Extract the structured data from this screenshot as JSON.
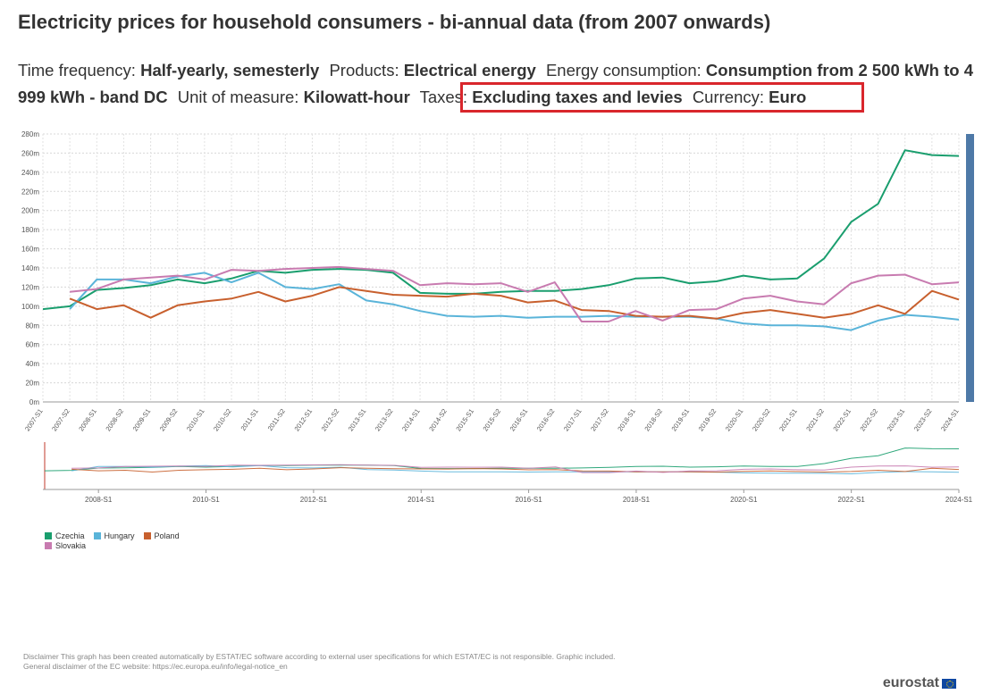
{
  "header": {
    "title": "Electricity prices for household consumers - bi-annual data (from 2007 onwards)",
    "filters": [
      {
        "label": "Time frequency:",
        "value": "Half-yearly, semesterly"
      },
      {
        "label": "Products:",
        "value": "Electrical energy"
      },
      {
        "label": "Energy consumption:",
        "value": "Consumption from 2 500 kWh to 4 999 kWh - band DC"
      },
      {
        "label": "Unit of measure:",
        "value": "Kilowatt-hour"
      },
      {
        "label": "Taxes:",
        "value": "Excluding taxes and levies"
      },
      {
        "label": "Currency:",
        "value": "Euro"
      }
    ],
    "highlight_color": "#d9262c"
  },
  "chart_data": {
    "type": "line",
    "title": "Electricity prices for household consumers - bi-annual data (from 2007 onwards)",
    "xlabel": "",
    "ylabel": "",
    "ylim": [
      0,
      280
    ],
    "y_ticks": [
      "0m",
      "20m",
      "40m",
      "60m",
      "80m",
      "100m",
      "120m",
      "140m",
      "160m",
      "180m",
      "200m",
      "220m",
      "240m",
      "260m",
      "280m"
    ],
    "y_tick_values": [
      0,
      20,
      40,
      60,
      80,
      100,
      120,
      140,
      160,
      180,
      200,
      220,
      240,
      260,
      280
    ],
    "categories": [
      "2007-S1",
      "2007-S2",
      "2008-S1",
      "2008-S2",
      "2009-S1",
      "2009-S2",
      "2010-S1",
      "2010-S2",
      "2011-S1",
      "2011-S2",
      "2012-S1",
      "2012-S2",
      "2013-S1",
      "2013-S2",
      "2014-S1",
      "2014-S2",
      "2015-S1",
      "2015-S2",
      "2016-S1",
      "2016-S2",
      "2017-S1",
      "2017-S2",
      "2018-S1",
      "2018-S2",
      "2019-S1",
      "2019-S2",
      "2020-S1",
      "2020-S2",
      "2021-S1",
      "2021-S2",
      "2022-S1",
      "2022-S2",
      "2023-S1",
      "2023-S2",
      "2024-S1"
    ],
    "grid": true,
    "legend_position": "bottom-left",
    "series": [
      {
        "name": "Czechia",
        "color": "#1a9e6e",
        "values": [
          97,
          100,
          117,
          119,
          122,
          128,
          124,
          129,
          137,
          135,
          138,
          139,
          138,
          135,
          114,
          113,
          113,
          115,
          116,
          116,
          118,
          122,
          129,
          130,
          124,
          126,
          132,
          128,
          129,
          150,
          188,
          207,
          263,
          258,
          257
        ]
      },
      {
        "name": "Hungary",
        "color": "#5ab4d9",
        "values": [
          null,
          97,
          128,
          128,
          124,
          131,
          135,
          125,
          135,
          120,
          118,
          123,
          106,
          102,
          95,
          90,
          89,
          90,
          88,
          89,
          89,
          90,
          89,
          89,
          89,
          87,
          82,
          80,
          80,
          79,
          75,
          85,
          91,
          89,
          86
        ]
      },
      {
        "name": "Poland",
        "color": "#c8602e",
        "values": [
          null,
          108,
          97,
          101,
          88,
          101,
          105,
          108,
          115,
          105,
          111,
          120,
          116,
          112,
          111,
          110,
          113,
          111,
          104,
          106,
          96,
          95,
          90,
          89,
          90,
          87,
          93,
          96,
          92,
          88,
          92,
          101,
          92,
          116,
          107
        ]
      },
      {
        "name": "Slovakia",
        "color": "#c87bb0",
        "values": [
          null,
          115,
          118,
          128,
          130,
          132,
          128,
          138,
          137,
          139,
          140,
          141,
          139,
          137,
          122,
          124,
          123,
          124,
          115,
          125,
          84,
          84,
          95,
          85,
          96,
          97,
          108,
          111,
          105,
          102,
          124,
          132,
          133,
          123,
          125
        ]
      }
    ],
    "navigator": {
      "tick_labels": [
        "2008-S1",
        "2010-S1",
        "2012-S1",
        "2014-S1",
        "2016-S1",
        "2018-S1",
        "2020-S1",
        "2022-S1",
        "2024-S1"
      ]
    }
  },
  "legend": {
    "items": [
      {
        "label": "Czechia",
        "color": "#1a9e6e"
      },
      {
        "label": "Hungary",
        "color": "#5ab4d9"
      },
      {
        "label": "Poland",
        "color": "#c8602e"
      },
      {
        "label": "Slovakia",
        "color": "#c87bb0"
      }
    ]
  },
  "footer": {
    "disclaimer_1": "Disclaimer This graph has been created automatically by ESTAT/EC software according to external user specifications for which ESTAT/EC is not responsible. Graphic included.",
    "disclaimer_2": "General disclaimer of the EC website: https://ec.europa.eu/info/legal-notice_en",
    "logo_text": "eurostat"
  }
}
